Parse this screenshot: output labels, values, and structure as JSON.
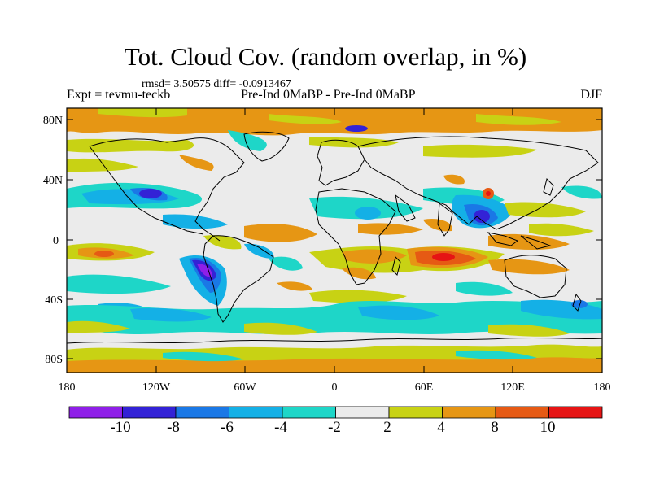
{
  "title": "Tot. Cloud Cov. (random overlap, in %)",
  "stats": "rmsd= 3.50575 diff= -0.0913467",
  "header": {
    "left": "Expt = tevmu-teckb",
    "center": "Pre-Ind 0MaBP - Pre-Ind 0MaBP",
    "right": "DJF"
  },
  "axes": {
    "x_ticks": [
      "180",
      "120W",
      "60W",
      "0",
      "60E",
      "120E",
      "180"
    ],
    "y_ticks": [
      "80N",
      "40N",
      "0",
      "40S",
      "80S"
    ]
  },
  "colorbar": {
    "labels": [
      "-10",
      "-8",
      "-6",
      "-4",
      "-2",
      "2",
      "4",
      "8",
      "10"
    ],
    "colors": [
      "#8f1fe8",
      "#3322d6",
      "#1a78e6",
      "#14b0e6",
      "#1ed6c8",
      "#ebebeb",
      "#c8d214",
      "#e69614",
      "#e65a14",
      "#e61414"
    ]
  }
}
